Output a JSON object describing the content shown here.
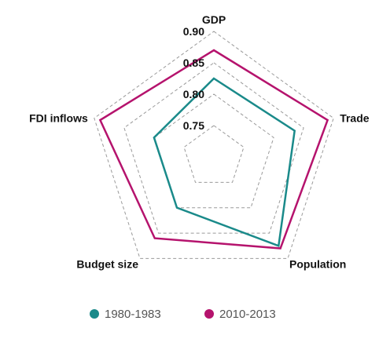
{
  "chart_data": {
    "type": "radar",
    "axes": [
      "GDP",
      "Trade",
      "Population",
      "Budget size",
      "FDI inflows"
    ],
    "rlim": [
      0.7,
      0.9
    ],
    "r_ticks": [
      0.75,
      0.8,
      0.85,
      0.9
    ],
    "r_tick_labels": [
      "0.75",
      "0.80",
      "0.85",
      "0.90"
    ],
    "grid": true,
    "legend_position": "bottom",
    "series": [
      {
        "name": "1980-1983",
        "color": "#1a8a8a",
        "values": [
          0.825,
          0.835,
          0.875,
          0.8,
          0.8
        ]
      },
      {
        "name": "2010-2013",
        "color": "#b5136d",
        "values": [
          0.87,
          0.89,
          0.88,
          0.86,
          0.89
        ]
      }
    ]
  }
}
